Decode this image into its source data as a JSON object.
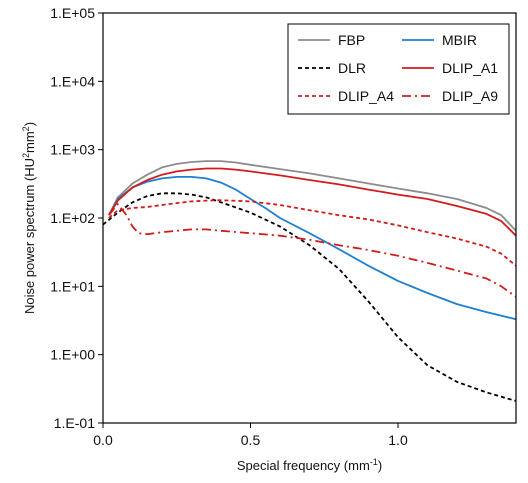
{
  "chart_data": {
    "type": "line",
    "title": "",
    "xlabel": "Special frequency (mm",
    "xlabel_sup": "-1",
    "xlabel_tail": ")",
    "ylabel": "Noise power spectrum (HU",
    "ylabel_sup1": "2",
    "ylabel_mid": "mm",
    "ylabel_sup2": "2",
    "ylabel_tail": ")",
    "xlim": [
      0,
      1.4
    ],
    "ylim": [
      0.1,
      100000
    ],
    "yscale": "log",
    "x_ticks": [
      0,
      0.5,
      1.0
    ],
    "x_tick_labels": [
      "0.0",
      "0.5",
      "1.0"
    ],
    "y_ticks": [
      0.1,
      1,
      10,
      100,
      1000,
      10000,
      100000
    ],
    "y_tick_labels": [
      "1.E-01",
      "1.E+00",
      "1.E+01",
      "1.E+02",
      "1.E+03",
      "1.E+04",
      "1.E+05"
    ],
    "grid": false,
    "legend_position": "top-right",
    "series": [
      {
        "name": "FBP",
        "color": "#8c8c8c",
        "dash": "solid",
        "x": [
          0.02,
          0.05,
          0.1,
          0.15,
          0.2,
          0.25,
          0.3,
          0.35,
          0.4,
          0.45,
          0.5,
          0.6,
          0.7,
          0.8,
          0.9,
          1.0,
          1.1,
          1.2,
          1.3,
          1.35,
          1.4
        ],
        "y": [
          110,
          200,
          320,
          430,
          550,
          620,
          660,
          680,
          680,
          650,
          600,
          520,
          450,
          380,
          320,
          270,
          230,
          190,
          140,
          110,
          65
        ]
      },
      {
        "name": "MBIR",
        "color": "#1f7fd0",
        "dash": "solid",
        "x": [
          0.02,
          0.05,
          0.1,
          0.15,
          0.2,
          0.25,
          0.3,
          0.35,
          0.4,
          0.45,
          0.5,
          0.55,
          0.6,
          0.7,
          0.8,
          0.9,
          1.0,
          1.1,
          1.2,
          1.3,
          1.4
        ],
        "y": [
          110,
          190,
          280,
          340,
          380,
          400,
          400,
          380,
          330,
          260,
          190,
          140,
          100,
          60,
          35,
          20,
          12,
          8,
          5.5,
          4.2,
          3.3
        ]
      },
      {
        "name": "DLR",
        "color": "#000000",
        "dash": "dashed",
        "x": [
          0.0,
          0.05,
          0.1,
          0.15,
          0.2,
          0.25,
          0.3,
          0.35,
          0.4,
          0.5,
          0.6,
          0.7,
          0.8,
          0.9,
          1.0,
          1.1,
          1.2,
          1.3,
          1.4
        ],
        "y": [
          80,
          120,
          170,
          210,
          230,
          230,
          220,
          200,
          170,
          120,
          75,
          40,
          18,
          6,
          1.8,
          0.7,
          0.4,
          0.28,
          0.21
        ]
      },
      {
        "name": "DLIP_A1",
        "color": "#d21c1c",
        "dash": "solid",
        "x": [
          0.02,
          0.05,
          0.1,
          0.15,
          0.2,
          0.25,
          0.3,
          0.35,
          0.4,
          0.45,
          0.5,
          0.6,
          0.7,
          0.8,
          0.9,
          1.0,
          1.1,
          1.2,
          1.3,
          1.35,
          1.4
        ],
        "y": [
          110,
          180,
          280,
          360,
          430,
          480,
          510,
          530,
          530,
          510,
          480,
          420,
          360,
          310,
          260,
          220,
          190,
          150,
          115,
          90,
          55
        ]
      },
      {
        "name": "DLIP_A4",
        "color": "#d21c1c",
        "dash": "dashed",
        "x": [
          0.02,
          0.05,
          0.1,
          0.15,
          0.2,
          0.25,
          0.3,
          0.35,
          0.4,
          0.5,
          0.6,
          0.7,
          0.8,
          0.9,
          1.0,
          1.1,
          1.2,
          1.3,
          1.35,
          1.4
        ],
        "y": [
          100,
          130,
          140,
          145,
          155,
          165,
          175,
          180,
          182,
          175,
          155,
          130,
          110,
          95,
          78,
          62,
          50,
          38,
          30,
          20
        ]
      },
      {
        "name": "DLIP_A9",
        "color": "#d21c1c",
        "dash": "dashdot",
        "x": [
          0.02,
          0.05,
          0.08,
          0.1,
          0.12,
          0.15,
          0.2,
          0.25,
          0.3,
          0.35,
          0.4,
          0.5,
          0.6,
          0.7,
          0.8,
          0.9,
          1.0,
          1.1,
          1.2,
          1.3,
          1.35,
          1.4
        ],
        "y": [
          110,
          160,
          110,
          75,
          60,
          58,
          62,
          65,
          68,
          68,
          65,
          60,
          55,
          48,
          40,
          34,
          28,
          22,
          17,
          13,
          10,
          7
        ]
      }
    ]
  }
}
